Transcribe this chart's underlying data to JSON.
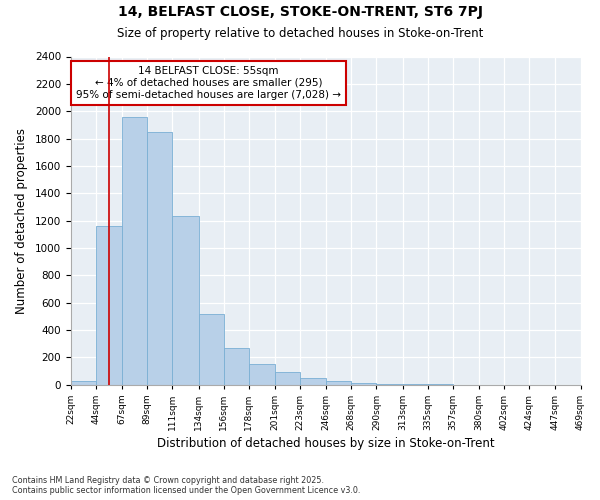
{
  "title": "14, BELFAST CLOSE, STOKE-ON-TRENT, ST6 7PJ",
  "subtitle": "Size of property relative to detached houses in Stoke-on-Trent",
  "xlabel": "Distribution of detached houses by size in Stoke-on-Trent",
  "ylabel": "Number of detached properties",
  "property_size": 55,
  "property_label": "14 BELFAST CLOSE: 55sqm",
  "annotation_line1": "← 4% of detached houses are smaller (295)",
  "annotation_line2": "95% of semi-detached houses are larger (7,028) →",
  "footer1": "Contains HM Land Registry data © Crown copyright and database right 2025.",
  "footer2": "Contains public sector information licensed under the Open Government Licence v3.0.",
  "bins": [
    22,
    44,
    67,
    89,
    111,
    134,
    156,
    178,
    201,
    223,
    246,
    268,
    290,
    313,
    335,
    357,
    380,
    402,
    424,
    447,
    469
  ],
  "values": [
    25,
    1160,
    1960,
    1850,
    1230,
    520,
    270,
    150,
    90,
    50,
    30,
    10,
    8,
    3,
    2,
    1,
    0,
    0,
    0,
    0
  ],
  "bar_color": "#b8d0e8",
  "bar_edge_color": "#7aafd4",
  "vline_color": "#cc0000",
  "annotation_box_color": "#cc0000",
  "background_color": "#e8eef4",
  "ylim": [
    0,
    2400
  ],
  "yticks": [
    0,
    200,
    400,
    600,
    800,
    1000,
    1200,
    1400,
    1600,
    1800,
    2000,
    2200,
    2400
  ]
}
